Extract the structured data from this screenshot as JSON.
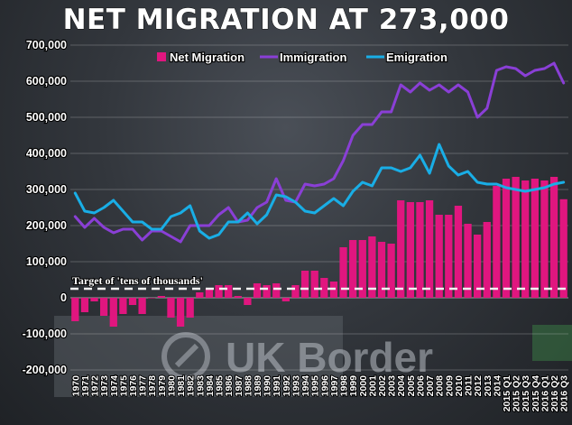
{
  "colors": {
    "net": "#e0167f",
    "immigration": "#8a3fd6",
    "emigration": "#19aee6",
    "target_line": "#f2f2f2"
  },
  "chart_data": {
    "type": "bar",
    "title": "NET MIGRATION AT 273,000",
    "ylim": [
      -200000,
      700000
    ],
    "yticks": [
      -200000,
      -100000,
      0,
      100000,
      200000,
      300000,
      400000,
      500000,
      600000,
      700000
    ],
    "ytick_labels": [
      "-200,000",
      "-100,000",
      "0",
      "100,000",
      "200,000",
      "300,000",
      "400,000",
      "500,000",
      "600,000",
      "700,000"
    ],
    "grid": true,
    "legend_position": "top",
    "categories": [
      "1970",
      "1971",
      "1972",
      "1973",
      "1974",
      "1975",
      "1976",
      "1977",
      "1978",
      "1979",
      "1980",
      "1981",
      "1982",
      "1983",
      "1984",
      "1985",
      "1986",
      "1987",
      "1988",
      "1989",
      "1990",
      "1991",
      "1992",
      "1993",
      "1994",
      "1995",
      "1996",
      "1997",
      "1998",
      "1999",
      "2000",
      "2001",
      "2002",
      "2003",
      "2004",
      "2005",
      "2006",
      "2007",
      "2008",
      "2009",
      "2010",
      "2011",
      "2012",
      "2013",
      "2014",
      "2015 Q1",
      "2015 Q2",
      "2015 Q3",
      "2015 Q4",
      "2016 Q1",
      "2016 Q2",
      "2016 Q3"
    ],
    "series": [
      {
        "name": "Net Migration",
        "kind": "bar",
        "values": [
          -65000,
          -40000,
          -10000,
          -50000,
          -80000,
          -45000,
          -20000,
          -45000,
          0,
          5000,
          -55000,
          -80000,
          -55000,
          15000,
          25000,
          35000,
          35000,
          5000,
          -20000,
          40000,
          35000,
          40000,
          -10000,
          35000,
          75000,
          75000,
          55000,
          45000,
          140000,
          160000,
          160000,
          170000,
          155000,
          150000,
          270000,
          265000,
          265000,
          270000,
          230000,
          230000,
          255000,
          205000,
          175000,
          210000,
          310000,
          330000,
          335000,
          325000,
          330000,
          325000,
          335000,
          273000
        ]
      },
      {
        "name": "Immigration",
        "kind": "line",
        "values": [
          225000,
          195000,
          220000,
          195000,
          180000,
          190000,
          190000,
          160000,
          185000,
          185000,
          170000,
          155000,
          200000,
          200000,
          200000,
          230000,
          250000,
          210000,
          215000,
          250000,
          265000,
          330000,
          270000,
          265000,
          315000,
          310000,
          315000,
          330000,
          380000,
          450000,
          480000,
          480000,
          515000,
          515000,
          590000,
          570000,
          595000,
          575000,
          590000,
          570000,
          590000,
          570000,
          500000,
          525000,
          630000,
          640000,
          635000,
          615000,
          630000,
          635000,
          650000,
          595000
        ]
      },
      {
        "name": "Emigration",
        "kind": "line",
        "values": [
          290000,
          240000,
          235000,
          250000,
          270000,
          240000,
          210000,
          210000,
          190000,
          190000,
          225000,
          235000,
          255000,
          185000,
          165000,
          175000,
          210000,
          210000,
          235000,
          205000,
          230000,
          285000,
          280000,
          265000,
          240000,
          235000,
          255000,
          275000,
          255000,
          295000,
          320000,
          310000,
          360000,
          360000,
          350000,
          360000,
          395000,
          345000,
          425000,
          365000,
          340000,
          350000,
          320000,
          315000,
          315000,
          305000,
          300000,
          295000,
          300000,
          305000,
          315000,
          320000
        ]
      }
    ],
    "annotations": [
      {
        "text": "Target of 'tens of thousands'",
        "y": 25000
      }
    ]
  },
  "background": {
    "sign_text": "UK Border"
  }
}
